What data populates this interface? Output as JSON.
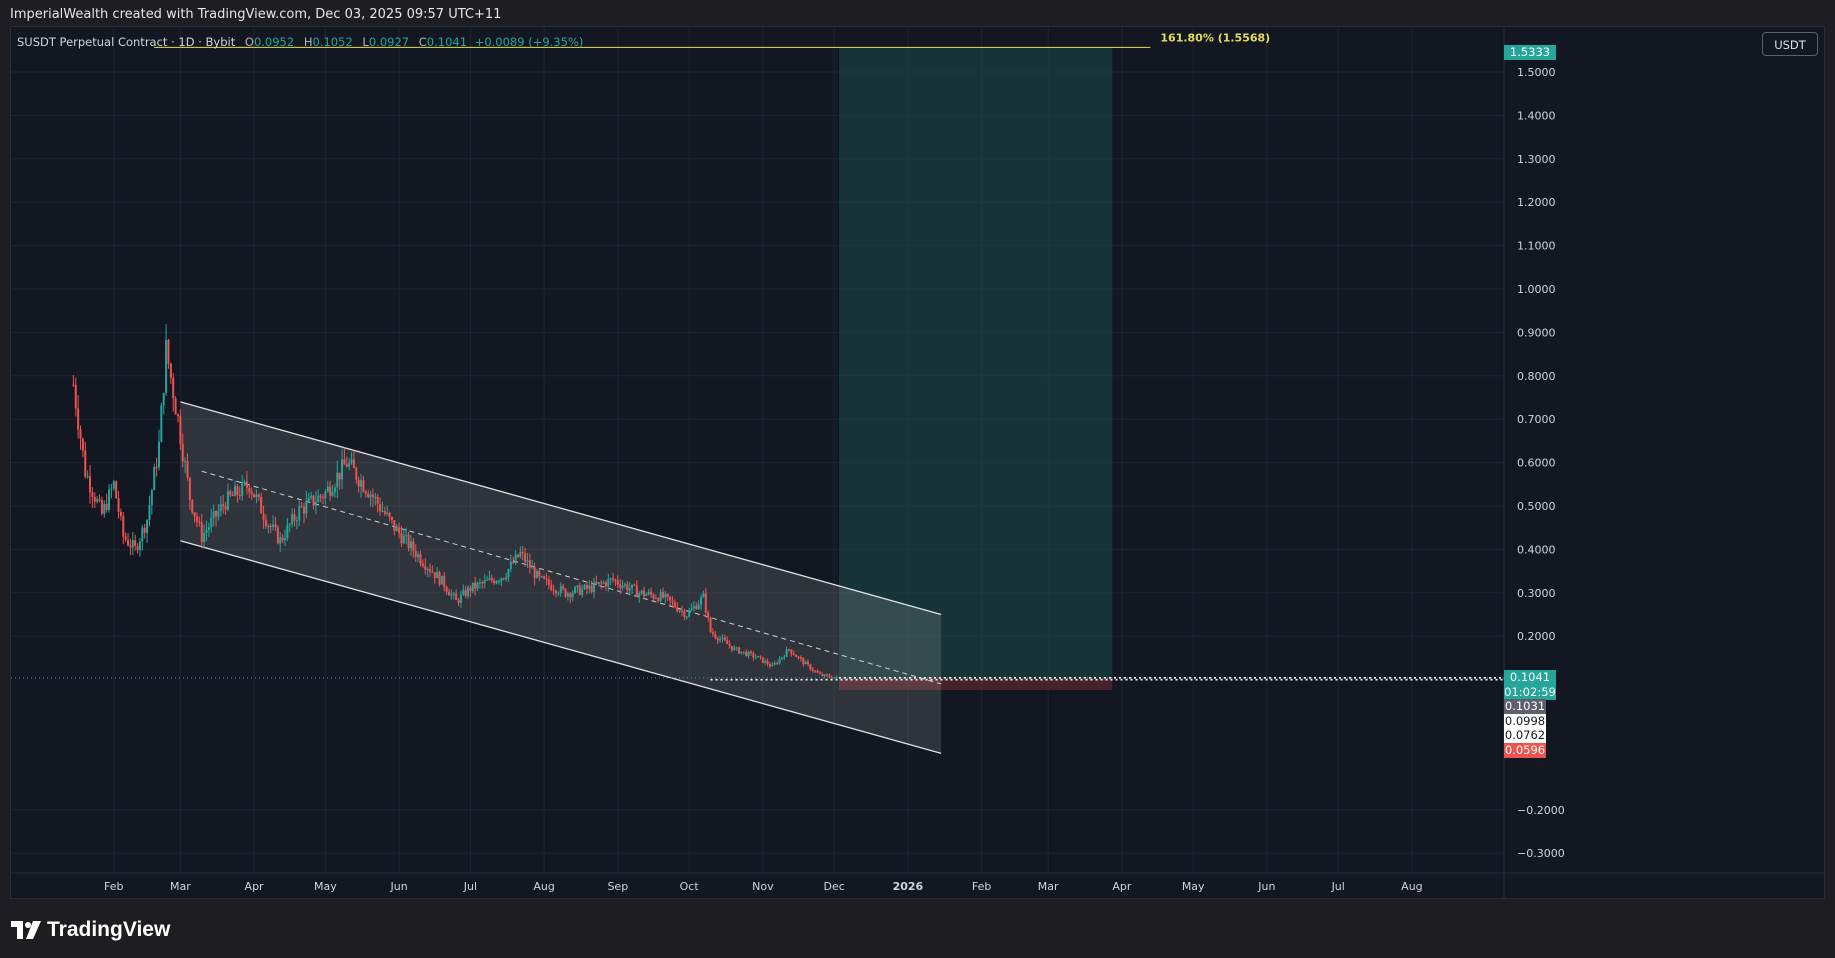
{
  "header": {
    "attribution": "ImperialWealth created with TradingView.com, Dec 03, 2025 09:57 UTC+11"
  },
  "legend": {
    "symbol": "SUSDT Perpetual Contract · 1D · Bybit",
    "open_label": "O",
    "open": "0.0952",
    "high_label": "H",
    "high": "0.1052",
    "low_label": "L",
    "low": "0.0927",
    "close_label": "C",
    "close": "0.1041",
    "change": "+0.0089 (+9.35%)"
  },
  "toolbar": {
    "currency": "USDT"
  },
  "footer": {
    "brand": "TradingView"
  },
  "colors": {
    "up": "#26a69a",
    "down": "#ef5350",
    "background": "#131722",
    "fib": "#e5de5a",
    "target_zone": "#1a4c4a",
    "stop_zone": "#6b2a33"
  },
  "chart_data": {
    "type": "candlestick",
    "price_axis": {
      "ticks": [
        "1.5000",
        "1.4000",
        "1.3000",
        "1.2000",
        "1.1000",
        "1.0000",
        "0.9000",
        "0.8000",
        "0.7000",
        "0.6000",
        "0.5000",
        "0.4000",
        "0.3000",
        "0.2000",
        "−0.2000",
        "−0.3000"
      ],
      "range": [
        -0.33,
        1.6
      ]
    },
    "time_axis": {
      "ticks": [
        "Feb",
        "Mar",
        "Apr",
        "May",
        "Jun",
        "Jul",
        "Aug",
        "Sep",
        "Oct",
        "Nov",
        "Dec",
        "2026",
        "Feb",
        "Mar",
        "Apr",
        "May",
        "Jun",
        "Jul",
        "Aug"
      ],
      "range": [
        "2025-01-14",
        "2026-09-02"
      ]
    },
    "price_series": [
      {
        "date": "2025-01-15",
        "price": 0.78
      },
      {
        "date": "2025-01-20",
        "price": 0.58
      },
      {
        "date": "2025-01-27",
        "price": 0.48
      },
      {
        "date": "2025-02-01",
        "price": 0.55
      },
      {
        "date": "2025-02-05",
        "price": 0.43
      },
      {
        "date": "2025-02-10",
        "price": 0.4
      },
      {
        "date": "2025-02-15",
        "price": 0.47
      },
      {
        "date": "2025-02-20",
        "price": 0.64
      },
      {
        "date": "2025-02-23",
        "price": 0.86
      },
      {
        "date": "2025-02-28",
        "price": 0.7
      },
      {
        "date": "2025-03-05",
        "price": 0.52
      },
      {
        "date": "2025-03-10",
        "price": 0.43
      },
      {
        "date": "2025-03-20",
        "price": 0.51
      },
      {
        "date": "2025-03-30",
        "price": 0.55
      },
      {
        "date": "2025-04-07",
        "price": 0.46
      },
      {
        "date": "2025-04-12",
        "price": 0.42
      },
      {
        "date": "2025-04-20",
        "price": 0.49
      },
      {
        "date": "2025-05-01",
        "price": 0.53
      },
      {
        "date": "2025-05-10",
        "price": 0.6
      },
      {
        "date": "2025-05-20",
        "price": 0.53
      },
      {
        "date": "2025-05-30",
        "price": 0.45
      },
      {
        "date": "2025-06-10",
        "price": 0.38
      },
      {
        "date": "2025-06-20",
        "price": 0.32
      },
      {
        "date": "2025-06-25",
        "price": 0.28
      },
      {
        "date": "2025-07-01",
        "price": 0.31
      },
      {
        "date": "2025-07-15",
        "price": 0.34
      },
      {
        "date": "2025-07-22",
        "price": 0.39
      },
      {
        "date": "2025-07-30",
        "price": 0.33
      },
      {
        "date": "2025-08-10",
        "price": 0.3
      },
      {
        "date": "2025-08-20",
        "price": 0.31
      },
      {
        "date": "2025-08-30",
        "price": 0.33
      },
      {
        "date": "2025-09-10",
        "price": 0.3
      },
      {
        "date": "2025-09-20",
        "price": 0.29
      },
      {
        "date": "2025-09-30",
        "price": 0.25
      },
      {
        "date": "2025-10-07",
        "price": 0.29
      },
      {
        "date": "2025-10-10",
        "price": 0.21
      },
      {
        "date": "2025-10-20",
        "price": 0.17
      },
      {
        "date": "2025-10-30",
        "price": 0.15
      },
      {
        "date": "2025-11-05",
        "price": 0.13
      },
      {
        "date": "2025-11-12",
        "price": 0.17
      },
      {
        "date": "2025-11-18",
        "price": 0.14
      },
      {
        "date": "2025-11-25",
        "price": 0.11
      },
      {
        "date": "2025-12-02",
        "price": 0.104
      }
    ],
    "channel": {
      "upper": [
        {
          "date": "2025-03-01",
          "price": 0.74
        },
        {
          "date": "2026-01-15",
          "price": 0.25
        }
      ],
      "middle": [
        {
          "date": "2025-03-10",
          "price": 0.58
        },
        {
          "date": "2026-01-15",
          "price": 0.09
        }
      ],
      "lower": [
        {
          "date": "2025-03-01",
          "price": 0.42
        },
        {
          "date": "2026-01-15",
          "price": -0.07
        }
      ]
    },
    "fib_level": {
      "label": "161.80% (1.5568)",
      "price": 1.5568,
      "from": "2025-02-18",
      "to": "2026-04-13"
    },
    "position": {
      "start": "2025-12-03",
      "end": "2026-03-28",
      "entry": 0.1041,
      "target": 1.5568,
      "stop": 0.0762
    },
    "current_price": 0.1041,
    "dotted_level": 0.0998,
    "price_tags": [
      {
        "label": "1.5333",
        "price": 1.5333,
        "style": "up"
      },
      {
        "label": "0.1041",
        "price": 0.1041,
        "style": "up"
      },
      {
        "label": "01:02:59",
        "price": 0.1041,
        "style": "up-countdown"
      },
      {
        "label": "0.1031",
        "price": 0.1031,
        "style": "grey"
      },
      {
        "label": "0.0998",
        "price": 0.0998,
        "style": "white"
      },
      {
        "label": "0.0762",
        "price": 0.0762,
        "style": "white"
      },
      {
        "label": "0.0596",
        "price": 0.0596,
        "style": "down"
      }
    ]
  }
}
